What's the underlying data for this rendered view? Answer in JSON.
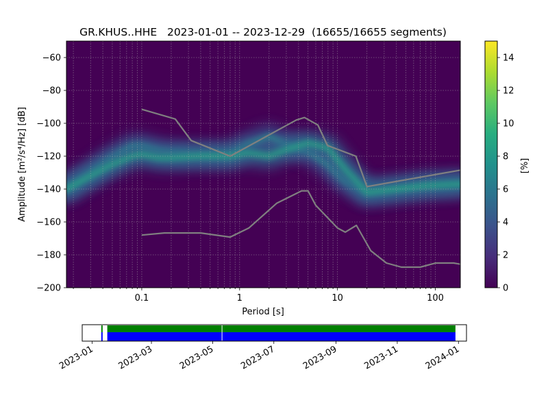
{
  "chart_data": [
    {
      "type": "heatmap",
      "title": "GR.KHUS..HHE   2023-01-01 -- 2023-12-29  (16655/16655 segments)",
      "xlabel": "Period [s]",
      "ylabel": "Amplitude [m²/s⁴/Hz] [dB]",
      "x_scale": "log",
      "xlim": [
        0.017,
        180
      ],
      "ylim": [
        -200,
        -50
      ],
      "grid": true,
      "x_ticks": [
        {
          "value": 0.1,
          "label": "0.1"
        },
        {
          "value": 1,
          "label": "1"
        },
        {
          "value": 10,
          "label": "10"
        },
        {
          "value": 100,
          "label": "100"
        }
      ],
      "y_ticks": [
        {
          "value": -60,
          "label": "−60"
        },
        {
          "value": -80,
          "label": "−80"
        },
        {
          "value": -100,
          "label": "−100"
        },
        {
          "value": -120,
          "label": "−120"
        },
        {
          "value": -140,
          "label": "−140"
        },
        {
          "value": -160,
          "label": "−160"
        },
        {
          "value": -180,
          "label": "−180"
        },
        {
          "value": -200,
          "label": "−200"
        }
      ],
      "colorbar": {
        "label": "[%]",
        "range": [
          0,
          15
        ],
        "ticks": [
          "0",
          "2",
          "4",
          "6",
          "8",
          "10",
          "12",
          "14"
        ],
        "colormap": "viridis"
      },
      "psd_ridges": [
        {
          "period": [
            0.017,
            0.03,
            0.05,
            0.08,
            0.1,
            0.15,
            0.2,
            0.4,
            0.8,
            1.2,
            2,
            3,
            5,
            8,
            12,
            20,
            40,
            80,
            180
          ],
          "db": [
            -140,
            -130,
            -121,
            -114,
            -114,
            -117,
            -118,
            -119,
            -119,
            -113,
            -108,
            -113,
            -117,
            -125,
            -135,
            -142,
            -140,
            -138,
            -137
          ]
        },
        {
          "period": [
            0.017,
            0.03,
            0.05,
            0.08,
            0.1,
            0.15,
            0.2,
            0.4,
            0.8,
            1.2,
            2,
            3,
            5,
            8,
            12,
            20,
            40,
            80,
            180
          ],
          "db": [
            -140,
            -132,
            -125,
            -120,
            -119,
            -121,
            -121,
            -120,
            -120,
            -118,
            -120,
            -116,
            -112,
            -115,
            -128,
            -142,
            -140,
            -138,
            -137
          ]
        }
      ],
      "noise_models": [
        {
          "period": [
            0.1,
            0.17,
            0.4,
            0.8,
            1.24,
            2.4,
            4.3,
            5,
            6,
            10,
            12,
            15.6,
            21.9,
            31.6,
            45,
            70,
            101,
            154,
            180
          ],
          "db": [
            -168,
            -166.7,
            -166.7,
            -169.2,
            -163.7,
            -148.6,
            -141.1,
            -141.1,
            -149.9,
            -163.7,
            -166.2,
            -162.1,
            -177.5,
            -185,
            -187.5,
            -187.5,
            -185,
            -185,
            -185.7
          ]
        },
        {
          "period": [
            0.1,
            0.22,
            0.32,
            0.8,
            3.8,
            4.6,
            6.3,
            7.9,
            15.4,
            20,
            180
          ],
          "db": [
            -91.5,
            -97.4,
            -110.5,
            -120,
            -98,
            -96.5,
            -101,
            -113.5,
            -120,
            -138.5,
            -128.5
          ]
        }
      ]
    },
    {
      "type": "timeline",
      "x_ticks": [
        "2023-01",
        "2023-03",
        "2023-05",
        "2023-07",
        "2023-09",
        "2023-11",
        "2024-01"
      ],
      "xlim": [
        "2022-12-22",
        "2024-01-09"
      ],
      "coverage_segments": [
        {
          "start": "2023-01-10",
          "end": "2023-01-11"
        },
        {
          "start": "2023-01-16",
          "end": "2023-12-29"
        }
      ],
      "gaps": [
        "2023-05-10"
      ],
      "colors": {
        "top": "#008000",
        "bottom": "#0000ff"
      }
    }
  ],
  "colors": {
    "heatmap_background": "#440154",
    "noise_model_line": "#808080"
  }
}
